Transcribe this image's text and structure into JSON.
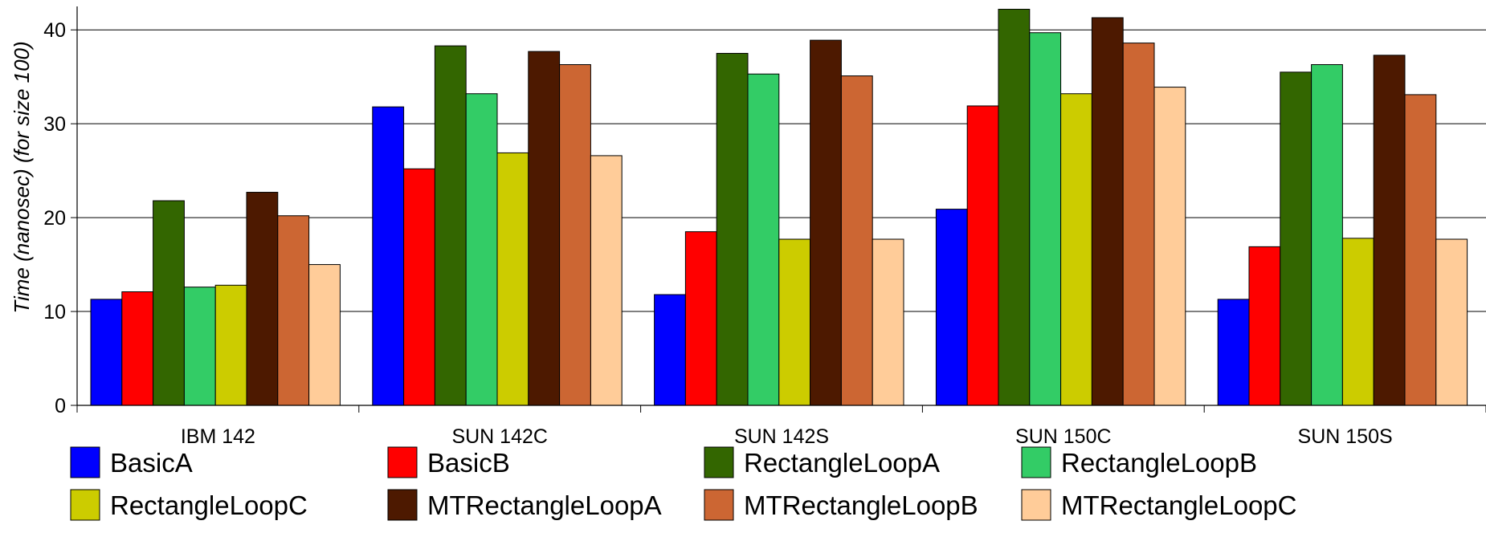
{
  "chart_data": {
    "type": "bar",
    "title": "",
    "xlabel": "",
    "ylabel": "Time (nanosec) (for size 100)",
    "ylim": [
      0,
      42.5
    ],
    "yticks": [
      0,
      10,
      20,
      30,
      40
    ],
    "grid": true,
    "legend_placement": "bottom",
    "categories": [
      "IBM 142",
      "SUN 142C",
      "SUN 142S",
      "SUN 150C",
      "SUN 150S"
    ],
    "series": [
      {
        "name": "BasicA",
        "color": "#0000ff",
        "values": [
          11.3,
          31.8,
          11.8,
          20.9,
          11.3
        ]
      },
      {
        "name": "BasicB",
        "color": "#ff0000",
        "values": [
          12.1,
          25.2,
          18.5,
          31.9,
          16.9
        ]
      },
      {
        "name": "RectangleLoopA",
        "color": "#336600",
        "values": [
          21.8,
          38.3,
          37.5,
          42.2,
          35.5
        ]
      },
      {
        "name": "RectangleLoopB",
        "color": "#33cc66",
        "values": [
          12.6,
          33.2,
          35.3,
          39.7,
          36.3
        ]
      },
      {
        "name": "RectangleLoopC",
        "color": "#cccc00",
        "values": [
          12.8,
          26.9,
          17.7,
          33.2,
          17.8
        ]
      },
      {
        "name": "MTRectangleLoopA",
        "color": "#4d1900",
        "values": [
          22.7,
          37.7,
          38.9,
          41.3,
          37.3
        ]
      },
      {
        "name": "MTRectangleLoopB",
        "color": "#cc6633",
        "values": [
          20.2,
          36.3,
          35.1,
          38.6,
          33.1
        ]
      },
      {
        "name": "MTRectangleLoopC",
        "color": "#ffcc99",
        "values": [
          15.0,
          26.6,
          17.7,
          33.9,
          17.7
        ]
      }
    ]
  }
}
